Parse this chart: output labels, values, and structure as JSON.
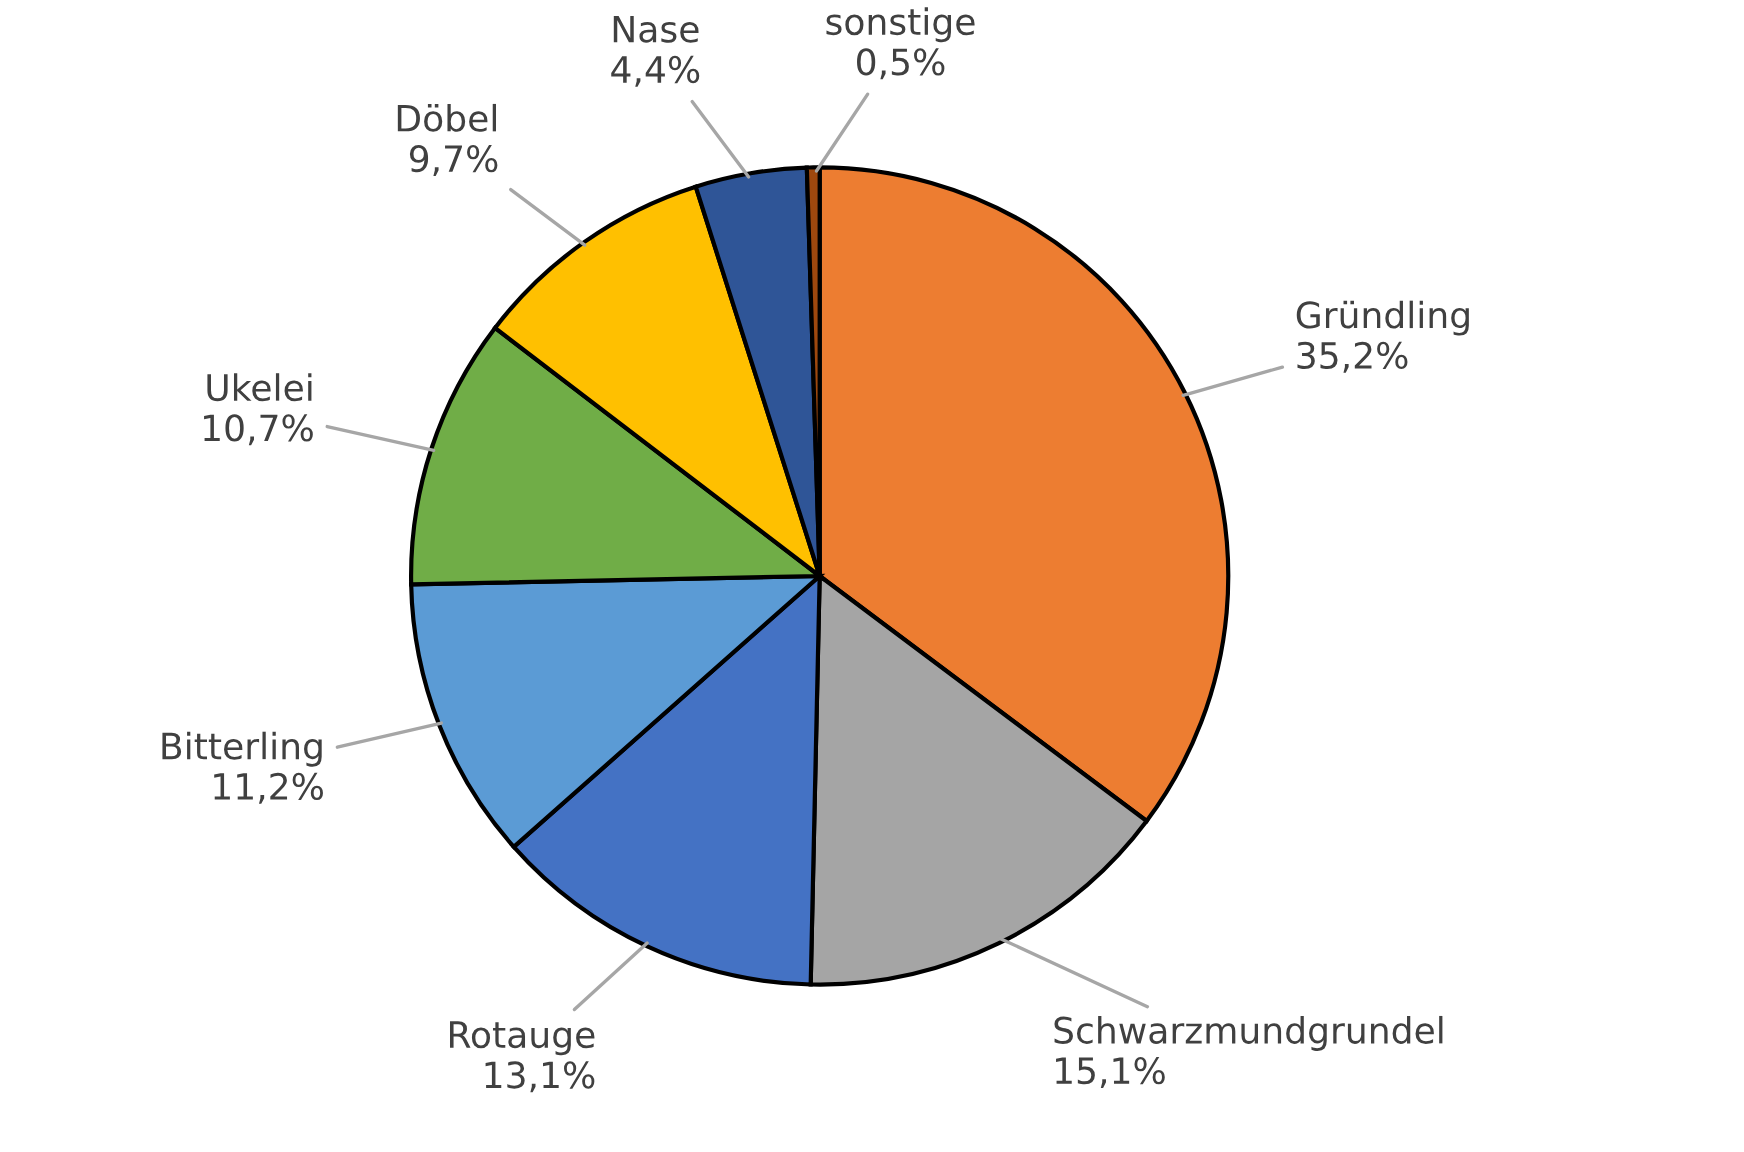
{
  "chart_data": {
    "type": "pie",
    "categories": [
      "Gründling",
      "Schwarzmundgrundel",
      "Rotauge",
      "Bitterling",
      "Ukelei",
      "Döbel",
      "Nase",
      "sonstige"
    ],
    "values": [
      35.2,
      15.1,
      13.1,
      11.2,
      10.7,
      9.7,
      4.4,
      0.5
    ],
    "value_labels": [
      "35,2%",
      "15,1%",
      "13,1%",
      "11,2%",
      "10,7%",
      "9,7%",
      "4,4%",
      "0,5%"
    ],
    "colors": [
      "#ed7d31",
      "#a5a5a5",
      "#4472c4",
      "#5b9bd5",
      "#70ad47",
      "#ffc000",
      "#2f5597",
      "#9e480e"
    ],
    "legend": false
  }
}
